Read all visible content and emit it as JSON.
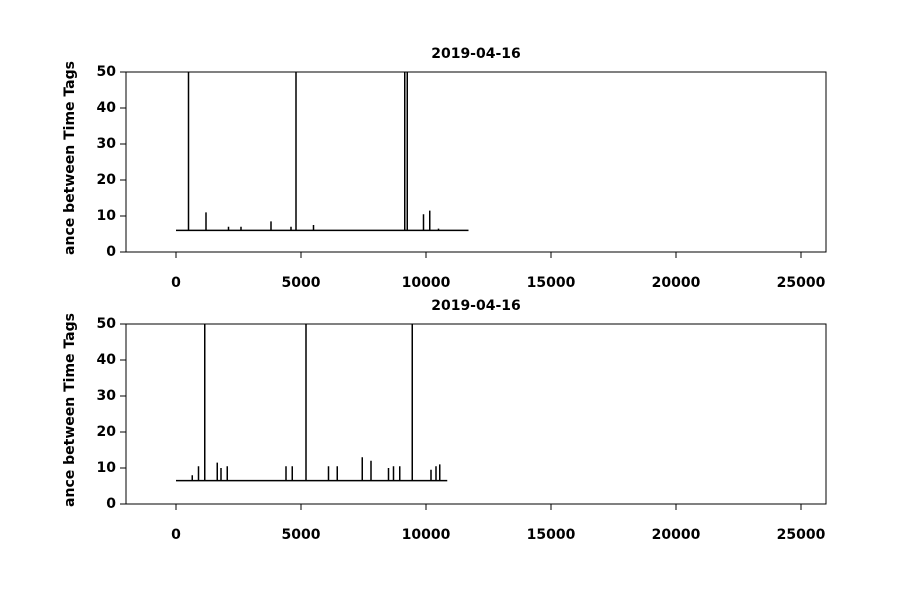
{
  "chart_data": [
    {
      "type": "line",
      "title": "2019-04-16",
      "ylabel": "ance between Time Tags",
      "color": "#000000",
      "xlim": [
        -2000,
        26000
      ],
      "ylim": [
        0,
        50
      ],
      "xticks": [
        0,
        5000,
        10000,
        15000,
        20000,
        25000
      ],
      "yticks": [
        0,
        10,
        20,
        30,
        40,
        50
      ],
      "x": [
        0,
        500,
        500,
        500,
        1200,
        1200,
        1200,
        2100,
        2100,
        2100,
        2600,
        2600,
        2600,
        3800,
        3800,
        3800,
        4600,
        4600,
        4600,
        4800,
        4800,
        4800,
        5500,
        5500,
        5500,
        9150,
        9150,
        9150,
        9250,
        9250,
        9250,
        9900,
        9900,
        9900,
        10150,
        10150,
        10150,
        10500,
        10500,
        10500,
        11700
      ],
      "values": [
        6,
        6,
        50,
        6,
        6,
        11,
        6,
        6,
        7,
        6,
        6,
        7,
        6,
        6,
        8.5,
        6,
        6,
        7,
        6,
        6,
        50,
        6,
        6,
        7.5,
        6,
        6,
        50,
        6,
        6,
        50,
        6,
        6,
        10.5,
        6,
        6,
        11.5,
        6,
        6,
        6.5,
        6,
        6
      ]
    },
    {
      "type": "line",
      "title": "2019-04-16",
      "ylabel": "ance between Time Tags",
      "color": "#000000",
      "xlim": [
        -2000,
        26000
      ],
      "ylim": [
        0,
        50
      ],
      "xticks": [
        0,
        5000,
        10000,
        15000,
        20000,
        25000
      ],
      "yticks": [
        0,
        10,
        20,
        30,
        40,
        50
      ],
      "x": [
        0,
        650,
        650,
        650,
        900,
        900,
        900,
        1150,
        1150,
        1150,
        1650,
        1650,
        1650,
        1800,
        1800,
        1800,
        2050,
        2050,
        2050,
        4400,
        4400,
        4400,
        4650,
        4650,
        4650,
        5200,
        5200,
        5200,
        6100,
        6100,
        6100,
        6450,
        6450,
        6450,
        7450,
        7450,
        7450,
        7800,
        7800,
        7800,
        8500,
        8500,
        8500,
        8700,
        8700,
        8700,
        8950,
        8950,
        8950,
        9450,
        9450,
        9450,
        10200,
        10200,
        10200,
        10400,
        10400,
        10400,
        10550,
        10550,
        10550,
        10850
      ],
      "values": [
        6.5,
        6.5,
        8,
        6.5,
        6.5,
        10.5,
        6.5,
        6.5,
        50,
        6.5,
        6.5,
        11.5,
        6.5,
        6.5,
        10,
        6.5,
        6.5,
        10.5,
        6.5,
        6.5,
        10.5,
        6.5,
        6.5,
        10.5,
        6.5,
        6.5,
        50,
        6.5,
        6.5,
        10.5,
        6.5,
        6.5,
        10.5,
        6.5,
        6.5,
        13,
        6.5,
        6.5,
        12,
        6.5,
        6.5,
        10,
        6.5,
        6.5,
        10.5,
        6.5,
        6.5,
        10.5,
        6.5,
        6.5,
        50,
        6.5,
        6.5,
        9.5,
        6.5,
        6.5,
        10.5,
        6.5,
        6.5,
        11,
        6.5,
        6.5
      ]
    }
  ]
}
